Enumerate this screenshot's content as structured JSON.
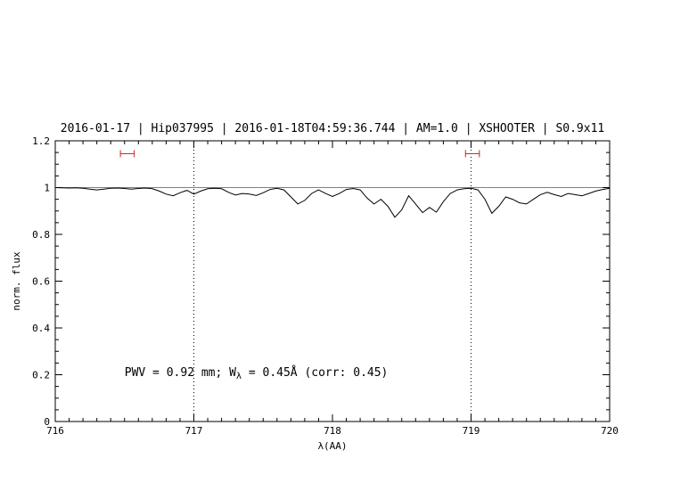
{
  "chart_data": {
    "type": "line",
    "title": "2016-01-17 | Hip037995 | 2016-01-18T04:59:36.744 | AM=1.0 | XSHOOTER | S0.9x11",
    "xlabel": "λ(AA)",
    "ylabel": "norm. flux",
    "xlim": [
      716,
      720
    ],
    "ylim": [
      0,
      1.2
    ],
    "x_ticks": [
      716,
      717,
      718,
      719,
      720
    ],
    "y_ticks": [
      0,
      0.2,
      0.4,
      0.6,
      0.8,
      1,
      1.2
    ],
    "x_minor_step": 0.1,
    "y_minor_step": 0.05,
    "grid": "off",
    "vlines": [
      717,
      719
    ],
    "continuum_y": 1.0,
    "colors": {
      "title": "#0000cc",
      "annotation": "#0000cc",
      "spectrum": "#000000",
      "continuum": "#cc2222",
      "marker": "#cc2222",
      "axis": "#000000"
    },
    "markers": [
      {
        "x": 716.52,
        "y": 1.145,
        "halfwidth": 0.05
      },
      {
        "x": 719.01,
        "y": 1.145,
        "halfwidth": 0.05
      }
    ],
    "annotation": {
      "x": 716.5,
      "y": 0.195,
      "prefix": "PWV = 0.92 mm; W",
      "sub": "λ",
      "suffix": " = 0.45Å (corr: 0.45)"
    },
    "series": [
      {
        "name": "spectrum",
        "points": [
          [
            716.0,
            1.0
          ],
          [
            716.05,
            0.999
          ],
          [
            716.1,
            0.998
          ],
          [
            716.15,
            0.999
          ],
          [
            716.2,
            0.997
          ],
          [
            716.25,
            0.993
          ],
          [
            716.3,
            0.99
          ],
          [
            716.35,
            0.993
          ],
          [
            716.4,
            0.997
          ],
          [
            716.45,
            0.998
          ],
          [
            716.5,
            0.996
          ],
          [
            716.55,
            0.993
          ],
          [
            716.6,
            0.996
          ],
          [
            716.65,
            0.998
          ],
          [
            716.7,
            0.995
          ],
          [
            716.75,
            0.985
          ],
          [
            716.8,
            0.972
          ],
          [
            716.85,
            0.965
          ],
          [
            716.9,
            0.978
          ],
          [
            716.95,
            0.988
          ],
          [
            717.0,
            0.972
          ],
          [
            717.05,
            0.985
          ],
          [
            717.1,
            0.995
          ],
          [
            717.15,
            0.997
          ],
          [
            717.2,
            0.995
          ],
          [
            717.25,
            0.98
          ],
          [
            717.3,
            0.968
          ],
          [
            717.35,
            0.975
          ],
          [
            717.4,
            0.972
          ],
          [
            717.45,
            0.966
          ],
          [
            717.5,
            0.978
          ],
          [
            717.55,
            0.992
          ],
          [
            717.6,
            0.997
          ],
          [
            717.65,
            0.99
          ],
          [
            717.7,
            0.96
          ],
          [
            717.75,
            0.93
          ],
          [
            717.8,
            0.945
          ],
          [
            717.85,
            0.975
          ],
          [
            717.9,
            0.99
          ],
          [
            717.95,
            0.975
          ],
          [
            718.0,
            0.962
          ],
          [
            718.05,
            0.975
          ],
          [
            718.1,
            0.992
          ],
          [
            718.15,
            0.996
          ],
          [
            718.2,
            0.99
          ],
          [
            718.25,
            0.955
          ],
          [
            718.3,
            0.93
          ],
          [
            718.35,
            0.95
          ],
          [
            718.4,
            0.92
          ],
          [
            718.45,
            0.873
          ],
          [
            718.5,
            0.905
          ],
          [
            718.55,
            0.965
          ],
          [
            718.6,
            0.93
          ],
          [
            718.65,
            0.893
          ],
          [
            718.7,
            0.915
          ],
          [
            718.75,
            0.895
          ],
          [
            718.8,
            0.94
          ],
          [
            718.85,
            0.975
          ],
          [
            718.9,
            0.99
          ],
          [
            718.95,
            0.995
          ],
          [
            719.0,
            0.997
          ],
          [
            719.05,
            0.99
          ],
          [
            719.1,
            0.95
          ],
          [
            719.15,
            0.89
          ],
          [
            719.2,
            0.92
          ],
          [
            719.25,
            0.96
          ],
          [
            719.3,
            0.95
          ],
          [
            719.35,
            0.935
          ],
          [
            719.4,
            0.93
          ],
          [
            719.45,
            0.95
          ],
          [
            719.5,
            0.97
          ],
          [
            719.55,
            0.98
          ],
          [
            719.6,
            0.97
          ],
          [
            719.65,
            0.962
          ],
          [
            719.7,
            0.975
          ],
          [
            719.75,
            0.97
          ],
          [
            719.8,
            0.965
          ],
          [
            719.85,
            0.975
          ],
          [
            719.9,
            0.985
          ],
          [
            719.95,
            0.992
          ],
          [
            720.0,
            0.997
          ]
        ]
      }
    ]
  }
}
